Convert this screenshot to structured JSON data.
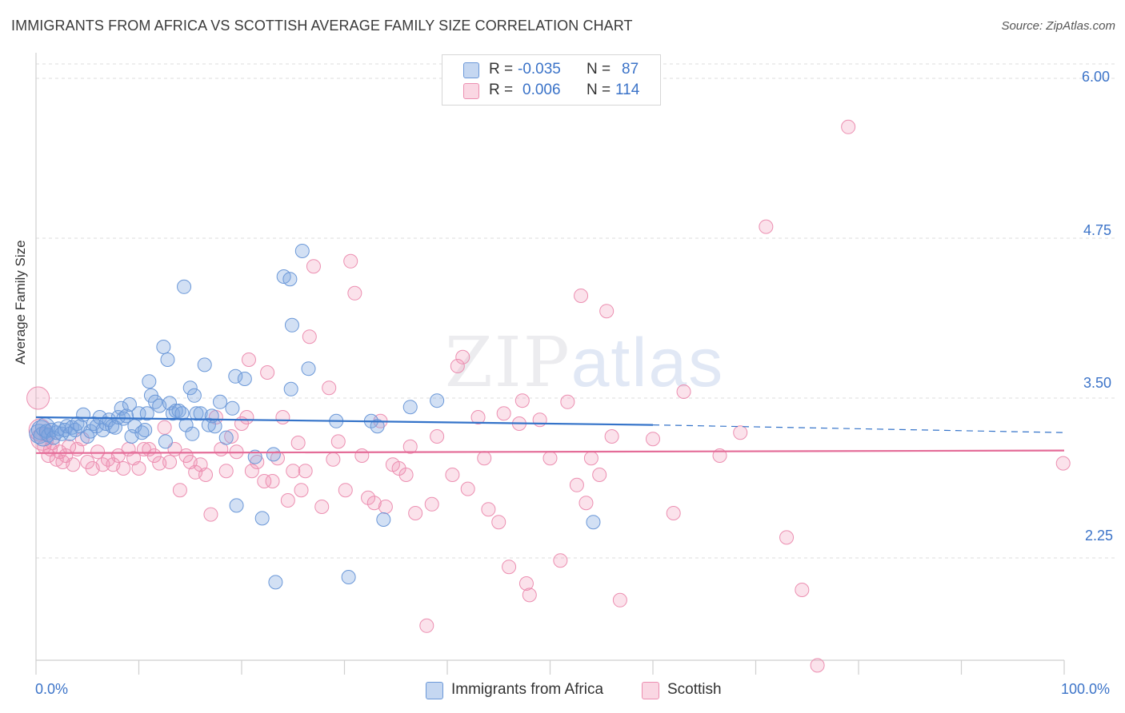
{
  "header": {
    "title": "IMMIGRANTS FROM AFRICA VS SCOTTISH AVERAGE FAMILY SIZE CORRELATION CHART",
    "source": "Source: ZipAtlas.com"
  },
  "watermark": {
    "zip": "ZIP",
    "atlas": "atlas"
  },
  "legend": {
    "rows": [
      {
        "r_label": "R =",
        "r_value": "-0.035",
        "n_label": "N =",
        "n_value": "87",
        "color": "#7ea6e0"
      },
      {
        "r_label": "R =",
        "r_value": "0.006",
        "n_label": "N =",
        "n_value": "114",
        "color": "#f08cb0"
      }
    ]
  },
  "colors": {
    "africa_fill": "rgba(126,166,224,0.35)",
    "africa_stroke": "#6b98d8",
    "africa_line": "#3473c9",
    "scottish_fill": "rgba(240,140,176,0.25)",
    "scottish_stroke": "#ec8fb1",
    "scottish_line": "#e46c98",
    "tick_label": "#3b73c8",
    "grid": "#dcdcdc"
  },
  "chart_data": {
    "type": "scatter",
    "title": "IMMIGRANTS FROM AFRICA VS SCOTTISH AVERAGE FAMILY SIZE CORRELATION CHART",
    "xlabel": "",
    "ylabel": "Average Family Size",
    "xlim": [
      0,
      100
    ],
    "ylim": [
      1.45,
      6.15
    ],
    "x_tick_labels": [
      "0.0%",
      "100.0%"
    ],
    "y_ticks": [
      2.25,
      3.5,
      4.75,
      6.0
    ],
    "y_tick_labels": [
      "2.25",
      "3.50",
      "4.75",
      "6.00"
    ],
    "grid": "horizontal dashed",
    "legend_position": "top-center",
    "series": [
      {
        "name": "Immigrants from Africa",
        "trend": {
          "x": [
            0,
            60
          ],
          "y": [
            3.35,
            3.29
          ],
          "dashed_to": [
            100,
            3.23
          ]
        },
        "points": [
          [
            0.3,
            3.22
          ],
          [
            0.5,
            3.25
          ],
          [
            0.7,
            3.2
          ],
          [
            0.9,
            3.27
          ],
          [
            1.0,
            3.24
          ],
          [
            1.2,
            3.21
          ],
          [
            1.5,
            3.25
          ],
          [
            1.7,
            3.19
          ],
          [
            2.0,
            3.23
          ],
          [
            2.2,
            3.26
          ],
          [
            2.5,
            3.22
          ],
          [
            2.8,
            3.25
          ],
          [
            3.0,
            3.28
          ],
          [
            3.3,
            3.22
          ],
          [
            3.5,
            3.27
          ],
          [
            3.8,
            3.25
          ],
          [
            4.0,
            3.3
          ],
          [
            4.3,
            3.28
          ],
          [
            4.6,
            3.37
          ],
          [
            5.0,
            3.2
          ],
          [
            5.3,
            3.24
          ],
          [
            5.6,
            3.3
          ],
          [
            5.9,
            3.28
          ],
          [
            6.2,
            3.35
          ],
          [
            6.5,
            3.25
          ],
          [
            6.8,
            3.3
          ],
          [
            7.1,
            3.33
          ],
          [
            7.4,
            3.28
          ],
          [
            7.7,
            3.27
          ],
          [
            8.0,
            3.35
          ],
          [
            8.3,
            3.42
          ],
          [
            8.5,
            3.34
          ],
          [
            8.8,
            3.36
          ],
          [
            9.1,
            3.45
          ],
          [
            9.3,
            3.2
          ],
          [
            9.6,
            3.28
          ],
          [
            10.0,
            3.38
          ],
          [
            10.3,
            3.23
          ],
          [
            10.6,
            3.25
          ],
          [
            10.8,
            3.38
          ],
          [
            11.0,
            3.63
          ],
          [
            11.2,
            3.52
          ],
          [
            11.6,
            3.47
          ],
          [
            12.0,
            3.44
          ],
          [
            12.4,
            3.9
          ],
          [
            12.6,
            3.16
          ],
          [
            12.8,
            3.8
          ],
          [
            13.0,
            3.46
          ],
          [
            13.3,
            3.38
          ],
          [
            13.6,
            3.4
          ],
          [
            13.9,
            3.4
          ],
          [
            14.2,
            3.38
          ],
          [
            14.4,
            4.37
          ],
          [
            14.6,
            3.29
          ],
          [
            15.0,
            3.58
          ],
          [
            15.2,
            3.22
          ],
          [
            15.4,
            3.52
          ],
          [
            15.6,
            3.38
          ],
          [
            16.0,
            3.38
          ],
          [
            16.4,
            3.76
          ],
          [
            16.8,
            3.29
          ],
          [
            17.1,
            3.36
          ],
          [
            17.4,
            3.28
          ],
          [
            17.9,
            3.47
          ],
          [
            18.5,
            3.19
          ],
          [
            19.1,
            3.42
          ],
          [
            19.5,
            2.66
          ],
          [
            19.4,
            3.67
          ],
          [
            20.3,
            3.65
          ],
          [
            21.3,
            3.04
          ],
          [
            22.0,
            2.56
          ],
          [
            23.1,
            3.06
          ],
          [
            23.3,
            2.06
          ],
          [
            24.1,
            4.45
          ],
          [
            24.7,
            4.43
          ],
          [
            24.9,
            4.07
          ],
          [
            24.8,
            3.57
          ],
          [
            25.9,
            4.65
          ],
          [
            26.5,
            3.73
          ],
          [
            29.2,
            3.32
          ],
          [
            30.4,
            2.1
          ],
          [
            32.6,
            3.32
          ],
          [
            33.2,
            3.28
          ],
          [
            33.8,
            2.55
          ],
          [
            36.4,
            3.43
          ],
          [
            39.0,
            3.48
          ],
          [
            54.2,
            2.53
          ]
        ]
      },
      {
        "name": "Scottish",
        "trend": {
          "x": [
            0,
            100
          ],
          "y": [
            3.07,
            3.09
          ]
        },
        "points": [
          [
            0.2,
            3.5
          ],
          [
            0.4,
            3.25
          ],
          [
            0.6,
            3.18
          ],
          [
            0.8,
            3.12
          ],
          [
            1.0,
            3.22
          ],
          [
            1.2,
            3.05
          ],
          [
            1.4,
            3.1
          ],
          [
            1.6,
            3.15
          ],
          [
            2.0,
            3.02
          ],
          [
            2.3,
            3.08
          ],
          [
            2.6,
            3.0
          ],
          [
            2.9,
            3.05
          ],
          [
            3.2,
            3.12
          ],
          [
            3.6,
            2.98
          ],
          [
            4.0,
            3.1
          ],
          [
            4.5,
            3.18
          ],
          [
            5.0,
            3.0
          ],
          [
            5.5,
            2.95
          ],
          [
            6.0,
            3.08
          ],
          [
            6.5,
            2.98
          ],
          [
            7.0,
            3.02
          ],
          [
            7.5,
            2.98
          ],
          [
            8.0,
            3.05
          ],
          [
            8.5,
            2.95
          ],
          [
            9.0,
            3.1
          ],
          [
            9.5,
            3.03
          ],
          [
            10.0,
            2.95
          ],
          [
            10.5,
            3.1
          ],
          [
            11.0,
            3.1
          ],
          [
            11.5,
            3.05
          ],
          [
            12.0,
            2.99
          ],
          [
            12.5,
            3.27
          ],
          [
            13.0,
            3.0
          ],
          [
            13.5,
            3.1
          ],
          [
            14.0,
            2.78
          ],
          [
            14.6,
            3.05
          ],
          [
            15.0,
            3.0
          ],
          [
            15.5,
            2.92
          ],
          [
            16.0,
            2.98
          ],
          [
            16.5,
            2.9
          ],
          [
            17.0,
            2.59
          ],
          [
            17.5,
            3.35
          ],
          [
            18.0,
            3.1
          ],
          [
            18.5,
            2.93
          ],
          [
            19.0,
            3.2
          ],
          [
            19.5,
            3.08
          ],
          [
            20.0,
            3.3
          ],
          [
            20.5,
            3.35
          ],
          [
            20.7,
            3.8
          ],
          [
            21.0,
            2.93
          ],
          [
            21.5,
            3.0
          ],
          [
            22.2,
            2.85
          ],
          [
            22.5,
            3.7
          ],
          [
            23.0,
            2.85
          ],
          [
            23.5,
            3.03
          ],
          [
            24.0,
            3.35
          ],
          [
            24.5,
            2.7
          ],
          [
            25.0,
            2.93
          ],
          [
            25.5,
            3.15
          ],
          [
            25.8,
            2.78
          ],
          [
            26.2,
            2.93
          ],
          [
            26.6,
            3.98
          ],
          [
            27.0,
            4.53
          ],
          [
            27.8,
            2.65
          ],
          [
            28.5,
            3.58
          ],
          [
            28.9,
            3.02
          ],
          [
            29.4,
            3.16
          ],
          [
            30.1,
            2.78
          ],
          [
            30.6,
            4.57
          ],
          [
            31.0,
            4.32
          ],
          [
            31.7,
            3.05
          ],
          [
            32.3,
            2.72
          ],
          [
            32.9,
            2.68
          ],
          [
            33.5,
            3.32
          ],
          [
            34.0,
            2.65
          ],
          [
            34.7,
            2.98
          ],
          [
            35.3,
            2.95
          ],
          [
            36.0,
            2.9
          ],
          [
            36.4,
            3.12
          ],
          [
            36.9,
            2.6
          ],
          [
            38.0,
            1.72
          ],
          [
            38.5,
            2.67
          ],
          [
            39.0,
            3.2
          ],
          [
            40.5,
            2.9
          ],
          [
            41.0,
            3.75
          ],
          [
            41.5,
            3.82
          ],
          [
            42.0,
            2.79
          ],
          [
            43.0,
            3.35
          ],
          [
            43.6,
            3.03
          ],
          [
            44.0,
            2.63
          ],
          [
            45.0,
            2.53
          ],
          [
            45.5,
            3.38
          ],
          [
            46.0,
            2.18
          ],
          [
            47.0,
            3.3
          ],
          [
            47.3,
            3.48
          ],
          [
            47.7,
            2.05
          ],
          [
            48.0,
            1.96
          ],
          [
            49.0,
            3.33
          ],
          [
            50.0,
            3.03
          ],
          [
            51.0,
            2.23
          ],
          [
            51.7,
            3.47
          ],
          [
            52.6,
            2.82
          ],
          [
            53.0,
            4.3
          ],
          [
            53.5,
            2.68
          ],
          [
            54.0,
            3.03
          ],
          [
            54.8,
            2.9
          ],
          [
            55.5,
            4.18
          ],
          [
            56.0,
            3.2
          ],
          [
            56.8,
            1.92
          ],
          [
            60.0,
            3.18
          ],
          [
            62.0,
            2.6
          ],
          [
            63.0,
            3.55
          ],
          [
            66.5,
            3.05
          ],
          [
            68.5,
            3.23
          ],
          [
            71.0,
            4.84
          ],
          [
            73.0,
            2.41
          ],
          [
            74.5,
            2.0
          ],
          [
            76.0,
            1.41
          ],
          [
            79.0,
            5.62
          ],
          [
            99.9,
            2.99
          ]
        ]
      }
    ]
  },
  "bottom_legend": {
    "items": [
      {
        "label": "Immigrants from Africa"
      },
      {
        "label": "Scottish"
      }
    ]
  },
  "axes": {
    "x_left_label": "0.0%",
    "x_right_label": "100.0%",
    "y_labels": [
      "6.00",
      "4.75",
      "3.50",
      "2.25"
    ]
  }
}
